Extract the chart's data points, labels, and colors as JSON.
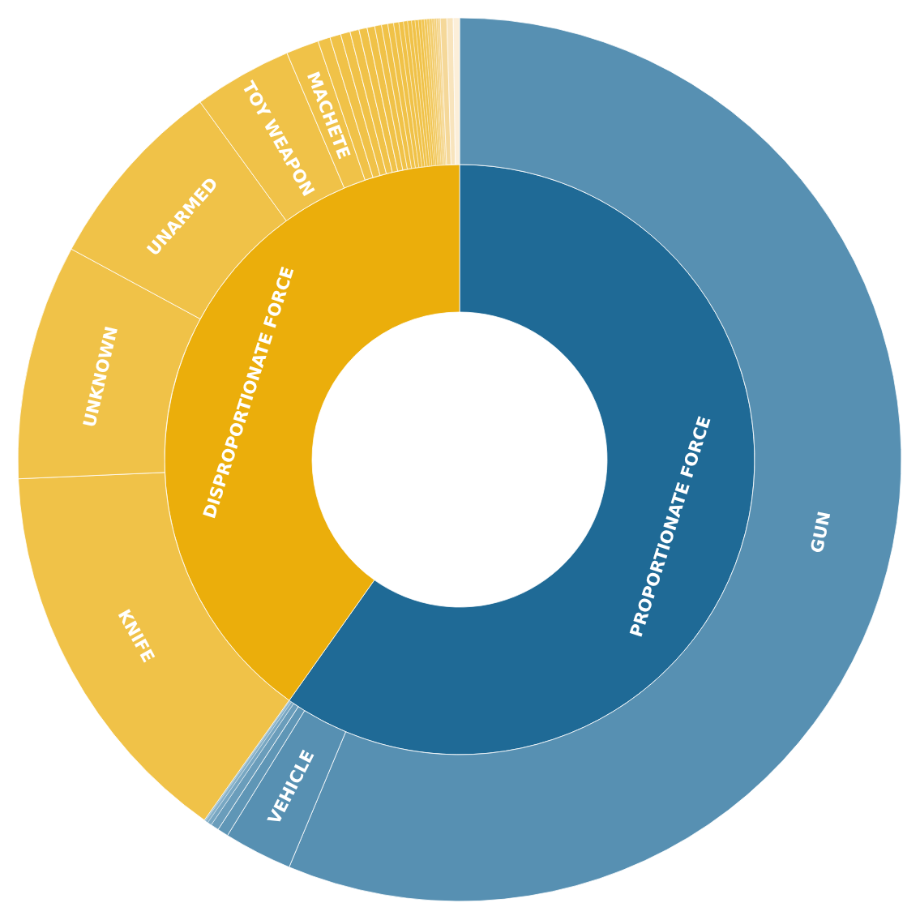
{
  "chart_data": [
    {
      "type": "donut",
      "categories": [
        "PROPORTIONATE FORCE",
        "DISPROPORTIONATE FORCE"
      ],
      "values": [
        59.8,
        40.2
      ],
      "colors": [
        "#1f6a96",
        "#ebae0b"
      ]
    },
    {
      "type": "donut",
      "categories": [
        "GUN",
        "VEHICLE",
        null,
        null,
        null,
        null,
        null,
        "KNIFE",
        "UNKNOWN",
        "UNARMED",
        "TOY WEAPON",
        "MACHETE",
        null,
        null,
        null,
        null,
        null,
        null,
        null,
        null,
        null,
        null,
        null,
        null,
        null,
        null,
        null,
        null,
        null,
        null,
        null,
        null,
        null,
        null,
        null,
        null,
        null,
        null,
        null
      ],
      "values": [
        56.3,
        2.5,
        0.4,
        0.3,
        0.15,
        0.1,
        0.05,
        14.5,
        8.6,
        7.1,
        3.6,
        1.2,
        0.45,
        0.4,
        0.35,
        0.33,
        0.3,
        0.28,
        0.25,
        0.23,
        0.21,
        0.19,
        0.17,
        0.15,
        0.14,
        0.13,
        0.12,
        0.11,
        0.1,
        0.1,
        0.09,
        0.09,
        0.08,
        0.08,
        0.07,
        0.07,
        0.24,
        0.23,
        0.23
      ],
      "colors": [
        "#5790b2",
        "#5790b2",
        "#5f96b6",
        "#6a9dbb",
        "#78a7c2",
        "#88b2ca",
        "#9bbfd2",
        "#f0c248",
        "#f0c248",
        "#f0c248",
        "#f0c248",
        "#f0c248",
        "#f0c248",
        "#f0c248",
        "#f0c248",
        "#f0c248",
        "#f0c248",
        "#f0c248",
        "#f0c248",
        "#f0c248",
        "#f0c248",
        "#f0c248",
        "#f0c248",
        "#f0c248",
        "#f0c248",
        "#f0c248",
        "#f0c248",
        "#f0c248",
        "#f1c551",
        "#f1c75a",
        "#f2ca62",
        "#f2cc6a",
        "#f3ce73",
        "#f3d07b",
        "#f4d283",
        "#f4d48b",
        "#f5d899",
        "#f8e4bd",
        "#fcefd9"
      ]
    }
  ]
}
